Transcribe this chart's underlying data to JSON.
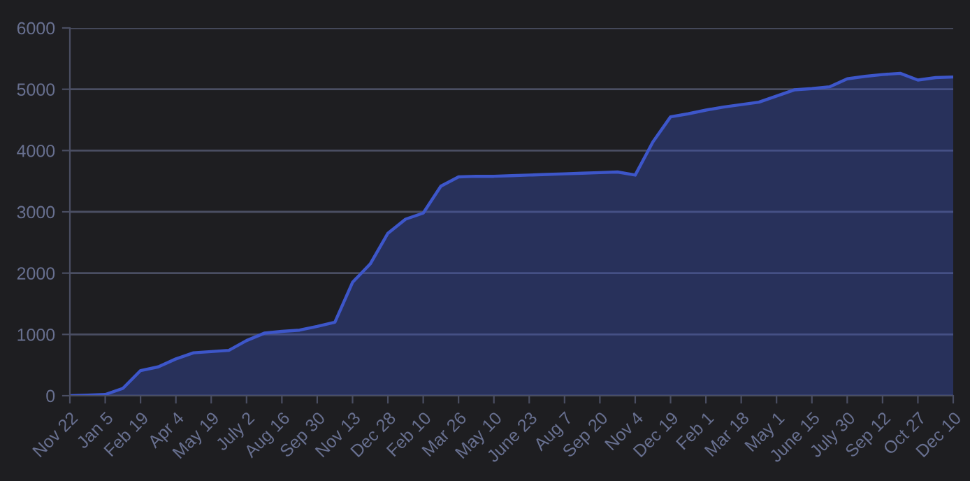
{
  "chart_data": {
    "type": "area",
    "categories": [
      "Nov 22",
      null,
      "Jan 5",
      null,
      "Feb 19",
      null,
      "Apr 4",
      null,
      "May 19",
      null,
      "July 2",
      null,
      "Aug 16",
      null,
      "Sep 30",
      null,
      "Nov 13",
      null,
      "Dec 28",
      null,
      "Feb 10",
      null,
      "Mar 26",
      null,
      "May 10",
      null,
      "June 23",
      null,
      "Aug 7",
      null,
      "Sep 20",
      null,
      "Nov 4",
      null,
      "Dec 19",
      null,
      "Feb 1",
      null,
      "Mar 18",
      null,
      "May 1",
      null,
      "June 15",
      null,
      "July 30",
      null,
      "Sep 12",
      null,
      "Oct 27",
      null,
      "Dec 10"
    ],
    "series": [
      {
        "color": "#3d56c9",
        "values": [
          0,
          10,
          20,
          120,
          410,
          470,
          600,
          700,
          720,
          740,
          900,
          1020,
          1050,
          1070,
          1130,
          1200,
          1850,
          2150,
          2650,
          2880,
          2980,
          3420,
          3570,
          3580,
          3580,
          3590,
          3600,
          3610,
          3620,
          3630,
          3640,
          3650,
          3600,
          4140,
          4550,
          4600,
          4660,
          4710,
          4750,
          4790,
          4890,
          4990,
          5010,
          5040,
          5170,
          5210,
          5240,
          5260,
          5150,
          5190,
          5200
        ]
      }
    ],
    "ylim": [
      0,
      6000
    ],
    "yticks": [
      0,
      1000,
      2000,
      3000,
      4000,
      5000,
      6000
    ],
    "grid": "y",
    "legend": false,
    "marker": "none",
    "line_style": "solid"
  }
}
